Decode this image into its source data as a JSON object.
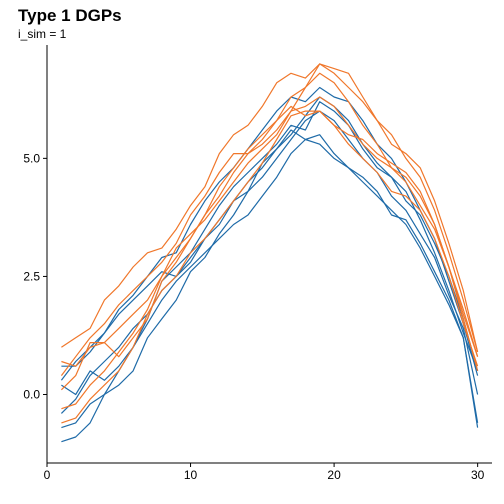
{
  "chart_data": {
    "type": "line",
    "title": "Type 1 DGPs",
    "subtitle": "i_sim = 1",
    "xlabel": "",
    "ylabel": "",
    "xlim": [
      0,
      31
    ],
    "ylim": [
      -1.45,
      7.4
    ],
    "x_ticks": [
      0,
      10,
      20,
      30
    ],
    "x_tick_labels": [
      "0",
      "10",
      "20",
      "30"
    ],
    "y_ticks": [
      0.0,
      2.5,
      5.0
    ],
    "y_tick_labels": [
      "0.0",
      "2.5",
      "5.0"
    ],
    "grid": false,
    "legend": "none",
    "colors": {
      "blue": "#1F6BA8",
      "orange": "#F0772B"
    },
    "x": [
      1,
      2,
      3,
      4,
      5,
      6,
      7,
      8,
      9,
      10,
      11,
      12,
      13,
      14,
      15,
      16,
      17,
      18,
      19,
      20,
      21,
      22,
      23,
      24,
      25,
      26,
      27,
      28,
      29,
      30
    ],
    "series": [
      {
        "color": "blue",
        "values": [
          -1.0,
          -0.9,
          -0.6,
          0.0,
          0.5,
          1.0,
          1.5,
          2.0,
          2.4,
          2.7,
          3.0,
          3.3,
          3.6,
          3.8,
          4.2,
          4.6,
          5.1,
          5.4,
          5.3,
          5.0,
          4.8,
          4.5,
          4.2,
          3.9,
          3.6,
          3.1,
          2.5,
          1.9,
          1.2,
          -0.7
        ]
      },
      {
        "color": "blue",
        "values": [
          -0.7,
          -0.6,
          -0.2,
          0.0,
          0.2,
          0.5,
          1.2,
          1.6,
          2.0,
          2.6,
          2.9,
          3.4,
          3.8,
          4.3,
          4.9,
          5.2,
          5.6,
          5.4,
          5.5,
          5.1,
          4.8,
          4.6,
          4.3,
          3.8,
          3.7,
          3.2,
          2.6,
          2.0,
          1.2,
          -0.6
        ]
      },
      {
        "color": "blue",
        "values": [
          -0.4,
          -0.1,
          0.4,
          0.7,
          1.0,
          1.4,
          1.7,
          2.2,
          2.5,
          2.9,
          3.3,
          3.7,
          4.1,
          4.3,
          4.6,
          5.0,
          5.4,
          5.8,
          6.0,
          5.8,
          5.4,
          5.0,
          4.7,
          4.2,
          3.9,
          3.4,
          2.9,
          2.1,
          1.4,
          0.0
        ]
      },
      {
        "color": "blue",
        "values": [
          0.2,
          0.0,
          0.5,
          0.3,
          0.6,
          1.0,
          1.6,
          2.4,
          2.7,
          3.0,
          3.5,
          4.0,
          4.4,
          4.7,
          5.0,
          5.3,
          5.7,
          5.6,
          6.2,
          6.0,
          5.7,
          5.2,
          4.8,
          4.6,
          4.3,
          3.7,
          3.0,
          2.2,
          1.3,
          0.5
        ]
      },
      {
        "color": "blue",
        "values": [
          0.6,
          0.6,
          0.9,
          1.3,
          1.7,
          2.0,
          2.3,
          2.6,
          2.5,
          2.8,
          3.3,
          3.6,
          4.1,
          4.5,
          4.8,
          5.2,
          5.5,
          5.9,
          6.3,
          6.1,
          5.8,
          5.3,
          4.9,
          4.6,
          4.1,
          3.8,
          3.2,
          2.5,
          1.6,
          0.5
        ]
      },
      {
        "color": "blue",
        "values": [
          0.3,
          0.7,
          1.0,
          1.3,
          1.8,
          2.1,
          2.5,
          2.9,
          3.0,
          3.6,
          4.1,
          4.5,
          4.8,
          5.2,
          5.6,
          6.0,
          6.3,
          6.2,
          6.5,
          6.3,
          6.2,
          5.8,
          5.3,
          5.0,
          4.5,
          3.9,
          3.3,
          2.4,
          1.5,
          0.4
        ]
      },
      {
        "color": "orange",
        "values": [
          -0.6,
          -0.5,
          -0.1,
          0.2,
          0.5,
          1.0,
          1.7,
          2.2,
          2.5,
          3.0,
          3.3,
          3.7,
          4.1,
          4.5,
          4.9,
          5.4,
          5.9,
          6.0,
          6.0,
          5.7,
          5.3,
          5.0,
          4.7,
          4.3,
          4.2,
          3.9,
          3.3,
          2.5,
          1.5,
          0.6
        ]
      },
      {
        "color": "orange",
        "values": [
          -0.3,
          -0.2,
          0.2,
          0.5,
          0.9,
          1.3,
          1.8,
          2.5,
          2.9,
          3.3,
          3.8,
          4.4,
          4.8,
          5.2,
          5.5,
          5.8,
          6.1,
          5.9,
          6.0,
          5.7,
          5.5,
          5.4,
          5.1,
          4.9,
          4.7,
          4.3,
          3.6,
          2.7,
          1.6,
          0.5
        ]
      },
      {
        "color": "orange",
        "values": [
          0.1,
          0.4,
          1.1,
          1.1,
          0.8,
          1.2,
          1.6,
          2.4,
          2.8,
          3.3,
          3.8,
          4.2,
          4.7,
          5.1,
          5.3,
          5.6,
          6.0,
          6.1,
          6.3,
          6.1,
          5.7,
          5.3,
          5.0,
          4.8,
          4.5,
          4.0,
          3.5,
          2.7,
          1.8,
          0.8
        ]
      },
      {
        "color": "orange",
        "values": [
          0.7,
          0.6,
          1.0,
          1.1,
          1.4,
          1.7,
          2.0,
          2.5,
          3.1,
          3.4,
          3.7,
          4.1,
          4.5,
          4.9,
          5.2,
          5.5,
          6.0,
          6.5,
          6.8,
          6.6,
          6.2,
          5.7,
          5.3,
          4.8,
          4.6,
          4.2,
          3.6,
          2.7,
          1.7,
          0.8
        ]
      },
      {
        "color": "orange",
        "values": [
          0.4,
          0.8,
          1.2,
          1.5,
          1.9,
          2.2,
          2.5,
          2.8,
          3.2,
          3.8,
          4.2,
          4.7,
          5.1,
          5.1,
          5.4,
          5.8,
          6.3,
          6.5,
          7.0,
          6.8,
          6.5,
          6.2,
          5.8,
          5.5,
          5.0,
          4.6,
          3.9,
          3.0,
          2.0,
          0.9
        ]
      },
      {
        "color": "orange",
        "values": [
          1.0,
          1.2,
          1.4,
          2.0,
          2.3,
          2.7,
          3.0,
          3.1,
          3.5,
          4.0,
          4.4,
          5.1,
          5.5,
          5.7,
          6.1,
          6.6,
          6.8,
          6.7,
          7.0,
          6.9,
          6.8,
          6.3,
          5.8,
          5.3,
          5.1,
          4.8,
          4.1,
          3.2,
          2.2,
          0.9
        ]
      }
    ]
  }
}
